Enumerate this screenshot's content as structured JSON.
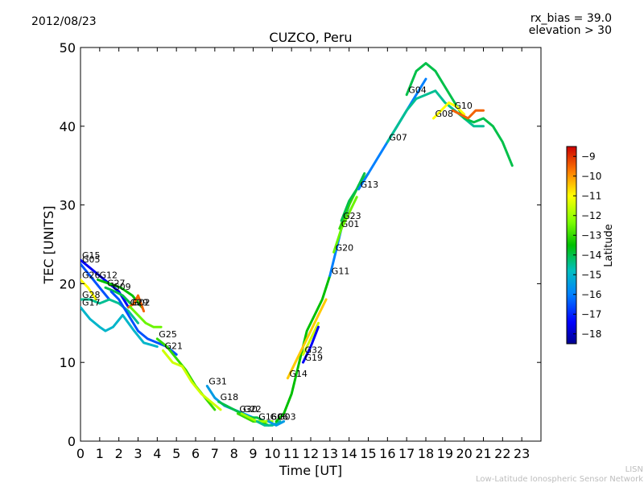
{
  "header": {
    "date": "2012/08/23",
    "rx_bias": "rx_bias = 39.0",
    "elevation": "elevation > 30"
  },
  "footer": {
    "line1": "LISN",
    "line2": "Low-Latitude Ionospheric Sensor Network"
  },
  "chart_data": {
    "type": "scatter",
    "title": "CUZCO, Peru",
    "xlabel": "Time [UT]",
    "ylabel": "TEC [UNITS]",
    "xlim": [
      0,
      24
    ],
    "ylim": [
      0,
      50
    ],
    "x_ticks": [
      0,
      1,
      2,
      3,
      4,
      5,
      6,
      7,
      8,
      9,
      10,
      11,
      12,
      13,
      14,
      15,
      16,
      17,
      18,
      19,
      20,
      21,
      22,
      23
    ],
    "y_ticks": [
      0,
      10,
      20,
      30,
      40,
      50
    ],
    "grid": false,
    "colorbar": {
      "label": "Latitude",
      "min": -18.5,
      "max": -8.5,
      "ticks": [
        -9,
        -10,
        -11,
        -12,
        -13,
        -14,
        -15,
        -16,
        -17,
        -18
      ]
    },
    "series": [
      {
        "name": "G15",
        "color_lat": -17.5,
        "x": [
          0.0,
          0.5,
          1.0,
          1.5,
          2.0,
          2.5
        ],
        "y": [
          23.0,
          22.0,
          21.0,
          20.0,
          19.0,
          17.0
        ]
      },
      {
        "name": "G05",
        "color_lat": -16.5,
        "x": [
          0.0,
          0.5,
          1.0,
          1.5
        ],
        "y": [
          22.5,
          21.0,
          19.5,
          18.0
        ]
      },
      {
        "name": "G26",
        "color_lat": -11.0,
        "x": [
          0.0,
          0.4,
          0.8
        ],
        "y": [
          20.5,
          19.5,
          18.0
        ]
      },
      {
        "name": "G12",
        "color_lat": -13.5,
        "x": [
          0.9,
          1.5,
          2.1,
          2.7,
          3.2
        ],
        "y": [
          20.5,
          20.0,
          19.5,
          18.5,
          17.0
        ]
      },
      {
        "name": "G27",
        "color_lat": -14.0,
        "x": [
          1.3,
          1.8,
          2.2,
          2.6
        ],
        "y": [
          19.5,
          19.0,
          18.5,
          17.5
        ]
      },
      {
        "name": "G28",
        "color_lat": -14.5,
        "x": [
          0.0,
          0.5,
          1.0,
          1.5,
          2.0,
          2.5,
          3.0
        ],
        "y": [
          18.0,
          18.0,
          17.5,
          18.0,
          17.5,
          16.5,
          15.0
        ]
      },
      {
        "name": "G17",
        "color_lat": -15.0,
        "x": [
          0.0,
          0.5,
          1.0,
          1.3,
          1.7,
          2.2,
          2.8,
          3.3,
          4.0
        ],
        "y": [
          17.0,
          15.5,
          14.5,
          14.0,
          14.5,
          16.0,
          14.0,
          12.5,
          12.0
        ]
      },
      {
        "name": "G09",
        "color_lat": -16.5,
        "x": [
          1.6,
          2.0,
          2.5,
          3.0,
          3.5,
          4.0,
          4.5,
          5.0
        ],
        "y": [
          19.0,
          18.0,
          16.0,
          14.0,
          13.0,
          12.5,
          12.0,
          11.0
        ]
      },
      {
        "name": "G29",
        "color_lat": -9.5,
        "x": [
          2.5,
          2.8,
          3.0,
          3.3
        ],
        "y": [
          17.0,
          17.5,
          18.5,
          16.5
        ]
      },
      {
        "name": "G02",
        "color_lat": -12.5,
        "x": [
          2.6,
          3.0,
          3.4,
          3.8,
          4.2
        ],
        "y": [
          17.0,
          16.0,
          15.0,
          14.5,
          14.5
        ]
      },
      {
        "name": "G25",
        "color_lat": -13.0,
        "x": [
          4.0,
          4.5,
          5.0,
          5.5,
          6.0,
          6.5,
          7.0
        ],
        "y": [
          13.0,
          12.0,
          10.5,
          9.0,
          7.0,
          5.5,
          4.0
        ]
      },
      {
        "name": "G21",
        "color_lat": -11.5,
        "x": [
          4.3,
          4.8,
          5.3,
          5.8,
          6.3,
          6.8,
          7.3
        ],
        "y": [
          11.5,
          10.0,
          9.5,
          7.5,
          6.0,
          5.0,
          4.0
        ]
      },
      {
        "name": "G31",
        "color_lat": -15.5,
        "x": [
          6.6,
          7.0,
          7.5,
          8.0,
          8.5,
          9.0
        ],
        "y": [
          7.0,
          5.5,
          4.5,
          4.0,
          3.5,
          3.0
        ]
      },
      {
        "name": "G18",
        "color_lat": -14.0,
        "x": [
          7.2,
          7.6,
          8.0,
          8.4,
          8.8,
          9.2,
          9.6
        ],
        "y": [
          5.0,
          4.5,
          4.0,
          3.5,
          3.0,
          3.0,
          2.5
        ]
      },
      {
        "name": "G30",
        "color_lat": -13.0,
        "x": [
          8.2,
          8.6,
          9.0,
          9.4,
          9.8
        ],
        "y": [
          3.5,
          3.0,
          2.5,
          2.5,
          2.0
        ]
      },
      {
        "name": "G22",
        "color_lat": -12.0,
        "x": [
          8.4,
          8.8,
          9.2,
          9.6,
          10.0
        ],
        "y": [
          3.5,
          3.0,
          2.5,
          2.5,
          2.5
        ]
      },
      {
        "name": "G16",
        "color_lat": -14.5,
        "x": [
          9.2,
          9.6,
          10.0,
          10.4
        ],
        "y": [
          2.5,
          2.0,
          2.0,
          2.5
        ]
      },
      {
        "name": "G06",
        "color_lat": -15.5,
        "x": [
          9.8,
          10.2,
          10.6
        ],
        "y": [
          2.5,
          2.0,
          2.5
        ]
      },
      {
        "name": "G03",
        "color_lat": -13.5,
        "x": [
          10.2,
          10.6,
          11.0,
          11.4,
          11.8,
          12.2,
          12.6,
          13.0
        ],
        "y": [
          2.5,
          3.5,
          6.0,
          10.0,
          14.0,
          16.0,
          18.0,
          21.0
        ]
      },
      {
        "name": "G14",
        "color_lat": -10.5,
        "x": [
          10.8,
          11.2,
          11.6,
          12.0,
          12.4,
          12.8
        ],
        "y": [
          8.0,
          10.0,
          12.0,
          14.0,
          16.0,
          18.0
        ]
      },
      {
        "name": "G32",
        "color_lat": -11.5,
        "x": [
          11.6,
          12.0,
          12.4
        ],
        "y": [
          11.0,
          13.0,
          15.0
        ]
      },
      {
        "name": "G19",
        "color_lat": -17.5,
        "x": [
          11.6,
          12.0,
          12.4
        ],
        "y": [
          10.0,
          12.0,
          14.5
        ]
      },
      {
        "name": "G11",
        "color_lat": -16.0,
        "x": [
          13.0,
          13.3,
          13.6,
          14.0
        ],
        "y": [
          21.0,
          24.0,
          27.0,
          30.0
        ]
      },
      {
        "name": "G20",
        "color_lat": -12.5,
        "x": [
          13.2,
          13.6,
          14.0,
          14.4
        ],
        "y": [
          24.0,
          27.0,
          29.0,
          31.0
        ]
      },
      {
        "name": "G01",
        "color_lat": -13.0,
        "x": [
          13.5,
          14.0,
          14.5,
          15.0
        ],
        "y": [
          27.0,
          30.0,
          32.5,
          34.0
        ]
      },
      {
        "name": "G23",
        "color_lat": -14.0,
        "x": [
          13.6,
          14.0,
          14.4,
          14.8
        ],
        "y": [
          28.0,
          30.5,
          32.0,
          34.0
        ]
      },
      {
        "name": "G13",
        "color_lat": -16.0,
        "x": [
          14.5,
          15.0,
          15.5,
          16.0,
          16.5,
          17.0,
          17.5,
          18.0
        ],
        "y": [
          32.0,
          34.0,
          36.0,
          38.0,
          40.0,
          42.0,
          44.0,
          46.0
        ]
      },
      {
        "name": "G07",
        "color_lat": -14.5,
        "x": [
          16.0,
          16.5,
          17.0,
          17.5,
          18.0,
          18.5,
          19.0,
          19.5,
          20.0,
          20.5,
          21.0
        ],
        "y": [
          38.0,
          40.0,
          42.0,
          43.5,
          44.0,
          44.5,
          43.0,
          42.0,
          41.0,
          40.0,
          40.0
        ]
      },
      {
        "name": "G04",
        "color_lat": -14.0,
        "x": [
          17.0,
          17.5,
          18.0,
          18.5,
          19.0,
          19.5,
          20.0,
          20.5,
          21.0,
          21.5,
          22.0,
          22.5
        ],
        "y": [
          44.0,
          47.0,
          48.0,
          47.0,
          45.0,
          43.0,
          41.0,
          40.5,
          41.0,
          40.0,
          38.0,
          35.0
        ]
      },
      {
        "name": "G08",
        "color_lat": -11.0,
        "x": [
          18.4,
          18.8,
          19.2,
          19.6,
          20.0
        ],
        "y": [
          41.0,
          42.0,
          43.0,
          42.5,
          41.5
        ]
      },
      {
        "name": "G10",
        "color_lat": -9.5,
        "x": [
          19.4,
          19.8,
          20.2,
          20.6,
          21.0
        ],
        "y": [
          42.0,
          41.5,
          41.0,
          42.0,
          42.0
        ]
      }
    ]
  }
}
